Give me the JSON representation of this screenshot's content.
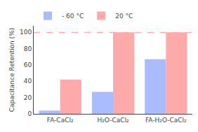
{
  "chart_data": {
    "type": "bar",
    "categories": [
      "FA-CaCl₂",
      "H₂O-CaCl₂",
      "FA-H₂O-CaCl₂"
    ],
    "series": [
      {
        "name": "- 60 °C",
        "color": "#aabbff",
        "values": [
          4,
          27,
          67
        ]
      },
      {
        "name": "20 °C",
        "color": "#ffaaaa",
        "values": [
          42,
          100,
          100
        ]
      }
    ],
    "ylabel": "Capacitance Retention (%)",
    "ylim": [
      0,
      108
    ],
    "yticks": [
      0,
      20,
      40,
      60,
      80,
      100
    ],
    "hline": {
      "y": 100,
      "color": "#ff9999"
    },
    "legend": "top",
    "grid": false
  }
}
